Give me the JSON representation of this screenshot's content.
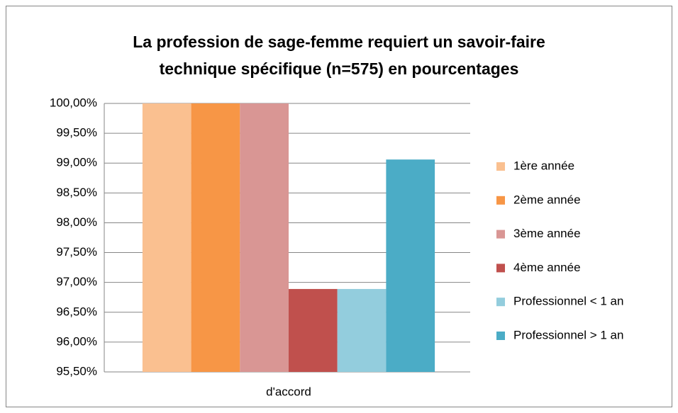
{
  "chart_data": {
    "type": "bar",
    "title": "La profession de sage-femme requiert un savoir-faire technique spécifique (n=575) en pourcentages",
    "categories": [
      "d'accord"
    ],
    "series": [
      {
        "name": "1ère année",
        "color": "#fac090",
        "values": [
          100
        ]
      },
      {
        "name": "2ème année",
        "color": "#f79646",
        "values": [
          100
        ]
      },
      {
        "name": "3ème année",
        "color": "#d99694",
        "values": [
          100
        ]
      },
      {
        "name": "4ème année",
        "color": "#c0504d",
        "values": [
          96.89
        ]
      },
      {
        "name": "Professionnel < 1 an",
        "color": "#93cddd",
        "values": [
          96.89
        ]
      },
      {
        "name": "Professionnel > 1 an",
        "color": "#4bacc6",
        "values": [
          99.06
        ]
      }
    ],
    "ylim": [
      95.5,
      100
    ],
    "yticks": [
      {
        "value": 95.5,
        "label": "95,50%"
      },
      {
        "value": 96,
        "label": "96,00%"
      },
      {
        "value": 96.5,
        "label": "96,50%"
      },
      {
        "value": 97,
        "label": "97,00%"
      },
      {
        "value": 97.5,
        "label": "97,50%"
      },
      {
        "value": 98,
        "label": "98,00%"
      },
      {
        "value": 98.5,
        "label": "98,50%"
      },
      {
        "value": 99,
        "label": "99,00%"
      },
      {
        "value": 99.5,
        "label": "99,50%"
      },
      {
        "value": 100,
        "label": "100,00%"
      }
    ],
    "grid": true,
    "legend": "right"
  }
}
